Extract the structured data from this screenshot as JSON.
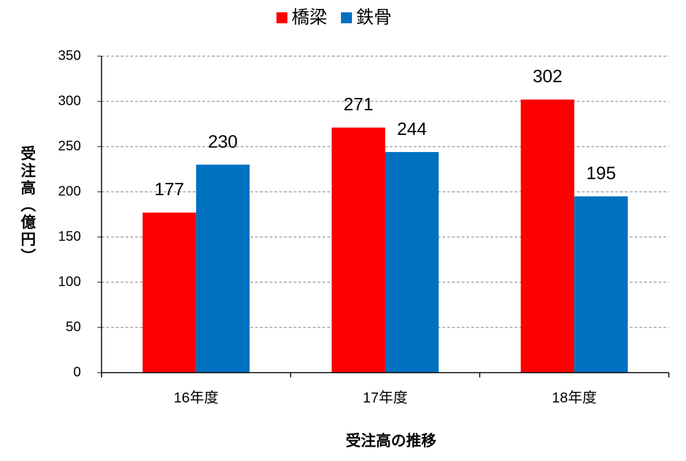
{
  "chart_data": {
    "type": "bar",
    "categories": [
      "16年度",
      "17年度",
      "18年度"
    ],
    "series": [
      {
        "name": "橋梁",
        "color": "#ff0000",
        "values": [
          177,
          271,
          302
        ]
      },
      {
        "name": "鉄骨",
        "color": "#0070c0",
        "values": [
          230,
          244,
          195
        ]
      }
    ],
    "x_label": "受注高の推移",
    "y_label": "受注高（億円）",
    "ylim": [
      0,
      350
    ],
    "yticks": [
      0,
      50,
      100,
      150,
      200,
      250,
      300,
      350
    ],
    "grid": true,
    "legend": "top"
  }
}
